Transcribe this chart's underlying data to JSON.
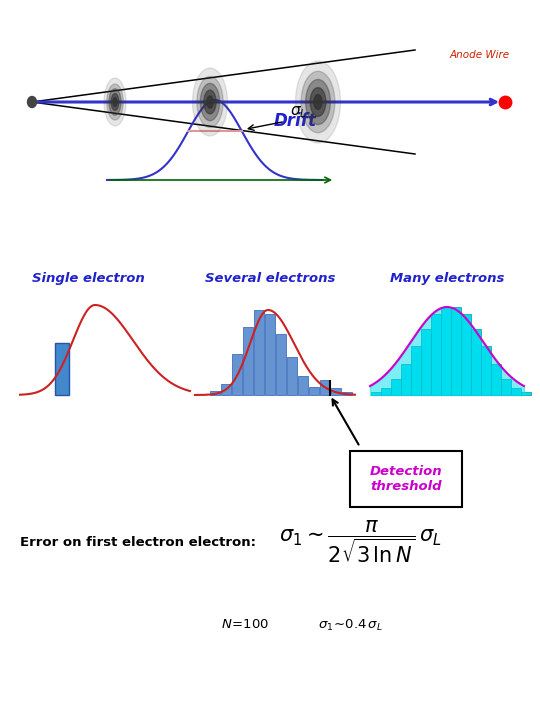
{
  "bg_color": "#ffffff",
  "anode_wire_label": "Anode Wire",
  "anode_wire_color": "#cc2200",
  "drift_label": "Drift",
  "drift_label_color": "#2222cc",
  "wire_color": "#3333cc",
  "single_electron_label": "Single electron",
  "several_electrons_label": "Several electrons",
  "many_electrons_label": "Many electrons",
  "label_color": "#2222cc",
  "detection_threshold_label": "Detection\nthreshold",
  "detection_threshold_color": "#cc00cc",
  "error_text": "Error on first electron electron:",
  "error_color": "#000000",
  "formula_color": "#000000",
  "n100_color": "#000000",
  "hist_bar_color": "#5588cc",
  "hist_bar_edge": "#3366bb",
  "cyan_fill": "#00ddee",
  "magenta_outline": "#cc00cc",
  "red_curve": "#cc2222",
  "blue_rect": "#4488cc",
  "green_arrow": "#006600"
}
